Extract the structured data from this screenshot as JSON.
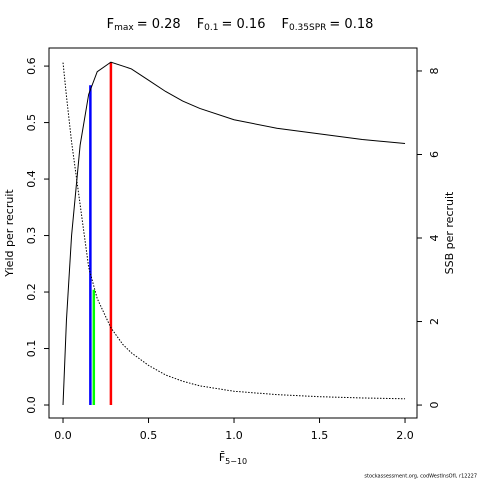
{
  "chart_data": {
    "type": "line",
    "title_parts": [
      {
        "symbol": "F",
        "sub": "max",
        "label": "= 0.28"
      },
      {
        "symbol": "F",
        "sub": "0.1",
        "label": "= 0.16"
      },
      {
        "symbol": "F",
        "sub": "0.35SPR",
        "label": "= 0.18"
      }
    ],
    "x_label": "F̄",
    "x_label_sub": "5−10",
    "y_label": "Yield per recruit",
    "y2_label": "SSB per recruit",
    "footer": "stockassessment.org, codWestInsOfI, r12227",
    "x": [
      0,
      0.02,
      0.05,
      0.1,
      0.15,
      0.2,
      0.28,
      0.35,
      0.4,
      0.5,
      0.6,
      0.7,
      0.8,
      1.0,
      1.25,
      1.5,
      1.75,
      2.0
    ],
    "series": [
      {
        "name": "Yield per recruit",
        "color": "#000000",
        "dash": false,
        "values": [
          0,
          0.15,
          0.3,
          0.46,
          0.55,
          0.59,
          0.607,
          0.6,
          0.595,
          0.575,
          0.555,
          0.538,
          0.525,
          0.505,
          0.49,
          0.48,
          0.47,
          0.463
        ]
      },
      {
        "name": "SSB per recruit",
        "color": "#000000",
        "dash": true,
        "axis": "y2",
        "values": [
          8.2,
          7.4,
          6.3,
          4.8,
          3.3,
          2.55,
          1.85,
          1.45,
          1.25,
          0.95,
          0.72,
          0.57,
          0.46,
          0.33,
          0.25,
          0.2,
          0.17,
          0.15
        ]
      }
    ],
    "reference_lines": [
      {
        "x": 0.28,
        "y": 0.607,
        "color": "#ff0000"
      },
      {
        "x": 0.16,
        "y": 0.566,
        "color": "#0000ff"
      },
      {
        "x": 0.18,
        "y": 0.204,
        "color": "#00ff00"
      }
    ],
    "xlim": [
      -0.082,
      2.07
    ],
    "ylim": [
      -0.023,
      0.632
    ],
    "y2lim": [
      -0.31,
      8.55
    ],
    "xticks": [
      {
        "value": 0,
        "label": "0.0"
      },
      {
        "value": 0.5,
        "label": "0.5"
      },
      {
        "value": 1,
        "label": "1.0"
      },
      {
        "value": 1.5,
        "label": "1.5"
      },
      {
        "value": 2,
        "label": "2.0"
      }
    ],
    "yticks": [
      {
        "value": 0,
        "label": "0.0"
      },
      {
        "value": 0.1,
        "label": "0.1"
      },
      {
        "value": 0.2,
        "label": "0.2"
      },
      {
        "value": 0.3,
        "label": "0.3"
      },
      {
        "value": 0.4,
        "label": "0.4"
      },
      {
        "value": 0.5,
        "label": "0.5"
      },
      {
        "value": 0.6,
        "label": "0.6"
      }
    ],
    "y2ticks": [
      0,
      2,
      4,
      6,
      8
    ]
  }
}
